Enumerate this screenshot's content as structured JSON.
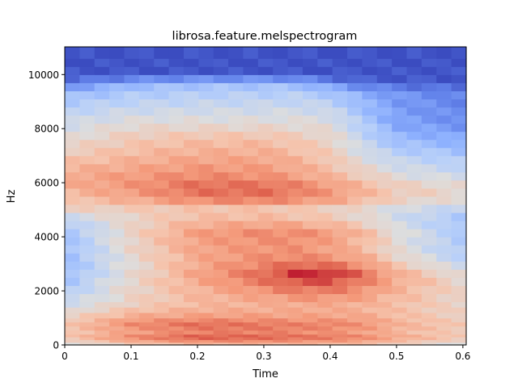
{
  "chart_data": {
    "type": "heatmap",
    "title": "librosa.feature.melspectrogram",
    "xlabel": "Time",
    "ylabel": "Hz",
    "xlim": [
      0,
      0.605
    ],
    "ylim": [
      0,
      11025
    ],
    "x_ticks": [
      0,
      0.1,
      0.2,
      0.3,
      0.4,
      0.5,
      0.6
    ],
    "x_tick_labels": [
      "0",
      "0.1",
      "0.2",
      "0.3",
      "0.4",
      "0.5",
      "0.6"
    ],
    "y_ticks": [
      0,
      2000,
      4000,
      6000,
      8000,
      10000
    ],
    "y_tick_labels": [
      "0",
      "2000",
      "4000",
      "6000",
      "8000",
      "10000"
    ],
    "colormap": "coolwarm",
    "grid": false,
    "time_frames": 27,
    "frequency_bins": [
      0,
      100,
      200,
      300,
      400,
      550,
      700,
      850,
      1000,
      1200,
      1400,
      1600,
      1900,
      2200,
      2500,
      2800,
      3100,
      3400,
      3700,
      4000,
      4300,
      4600,
      4900,
      5200,
      5500,
      5800,
      6100,
      6400,
      6700,
      7000,
      7300,
      7600,
      7900,
      8200,
      8500,
      8800,
      9100,
      9400,
      9700,
      10000,
      10300,
      10600,
      11025
    ],
    "intensity_description": "normalized 0-1 values sampled per (time, frequency) cell",
    "anchors": {
      "freqs": [
        0,
        150,
        300,
        450,
        600,
        800,
        1000,
        1200,
        1500,
        1900,
        2300,
        2700,
        3100,
        3600,
        4200,
        4600,
        5000,
        5400,
        5800,
        6300,
        7000,
        7600,
        8200,
        8800,
        9400,
        9700,
        10000,
        11025
      ],
      "times": [
        0,
        0.1,
        0.2,
        0.3,
        0.35,
        0.4,
        0.45,
        0.5,
        0.6
      ],
      "values": [
        [
          0.45,
          0.55,
          0.62,
          0.62,
          0.62,
          0.62,
          0.6,
          0.55,
          0.45
        ],
        [
          0.55,
          0.7,
          0.78,
          0.78,
          0.76,
          0.75,
          0.72,
          0.65,
          0.55
        ],
        [
          0.62,
          0.8,
          0.9,
          0.88,
          0.86,
          0.84,
          0.8,
          0.72,
          0.62
        ],
        [
          0.6,
          0.72,
          0.8,
          0.8,
          0.78,
          0.76,
          0.72,
          0.66,
          0.58
        ],
        [
          0.62,
          0.75,
          0.82,
          0.82,
          0.8,
          0.78,
          0.75,
          0.68,
          0.6
        ],
        [
          0.6,
          0.78,
          0.85,
          0.82,
          0.8,
          0.8,
          0.76,
          0.68,
          0.6
        ],
        [
          0.58,
          0.72,
          0.76,
          0.76,
          0.74,
          0.74,
          0.72,
          0.66,
          0.58
        ],
        [
          0.52,
          0.65,
          0.7,
          0.7,
          0.7,
          0.7,
          0.68,
          0.64,
          0.56
        ],
        [
          0.45,
          0.58,
          0.66,
          0.68,
          0.7,
          0.7,
          0.68,
          0.64,
          0.56
        ],
        [
          0.38,
          0.55,
          0.66,
          0.74,
          0.78,
          0.78,
          0.74,
          0.66,
          0.55
        ],
        [
          0.33,
          0.55,
          0.7,
          0.82,
          0.88,
          0.88,
          0.8,
          0.7,
          0.55
        ],
        [
          0.3,
          0.52,
          0.72,
          0.85,
          0.95,
          0.96,
          0.84,
          0.68,
          0.5
        ],
        [
          0.3,
          0.52,
          0.7,
          0.78,
          0.8,
          0.78,
          0.72,
          0.58,
          0.4
        ],
        [
          0.3,
          0.55,
          0.72,
          0.76,
          0.76,
          0.72,
          0.65,
          0.52,
          0.35
        ],
        [
          0.32,
          0.56,
          0.74,
          0.78,
          0.78,
          0.74,
          0.66,
          0.52,
          0.35
        ],
        [
          0.38,
          0.55,
          0.66,
          0.68,
          0.66,
          0.62,
          0.55,
          0.45,
          0.32
        ],
        [
          0.55,
          0.58,
          0.6,
          0.6,
          0.58,
          0.56,
          0.52,
          0.46,
          0.4
        ],
        [
          0.62,
          0.7,
          0.8,
          0.82,
          0.78,
          0.74,
          0.66,
          0.58,
          0.52
        ],
        [
          0.68,
          0.76,
          0.86,
          0.86,
          0.82,
          0.76,
          0.68,
          0.6,
          0.55
        ],
        [
          0.7,
          0.74,
          0.78,
          0.76,
          0.72,
          0.66,
          0.58,
          0.5,
          0.44
        ],
        [
          0.6,
          0.66,
          0.7,
          0.7,
          0.66,
          0.6,
          0.48,
          0.4,
          0.34
        ],
        [
          0.52,
          0.6,
          0.64,
          0.64,
          0.6,
          0.56,
          0.42,
          0.3,
          0.24
        ],
        [
          0.45,
          0.52,
          0.52,
          0.52,
          0.52,
          0.5,
          0.36,
          0.22,
          0.16
        ],
        [
          0.38,
          0.42,
          0.44,
          0.44,
          0.44,
          0.42,
          0.3,
          0.2,
          0.14
        ],
        [
          0.28,
          0.34,
          0.36,
          0.36,
          0.36,
          0.32,
          0.24,
          0.18,
          0.12
        ],
        [
          0.1,
          0.26,
          0.3,
          0.3,
          0.28,
          0.16,
          0.06,
          0.04,
          0.03
        ],
        [
          0.02,
          0.02,
          0.02,
          0.02,
          0.02,
          0.02,
          0.02,
          0.02,
          0.02
        ],
        [
          0.01,
          0.01,
          0.01,
          0.01,
          0.01,
          0.01,
          0.01,
          0.01,
          0.01
        ]
      ]
    }
  }
}
